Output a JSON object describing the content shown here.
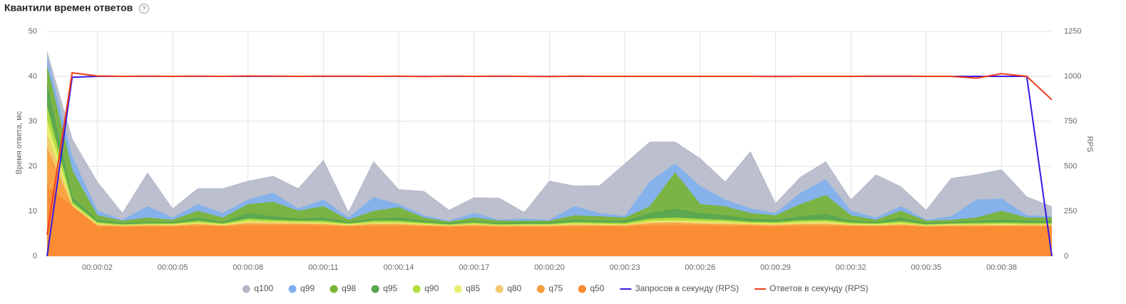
{
  "chart_data": {
    "type": "area",
    "title": "Квантили времен ответов",
    "help": "?",
    "ylabel": "Время ответа, мс",
    "y2label": "RPS",
    "x": [
      0,
      1,
      2,
      3,
      4,
      5,
      6,
      7,
      8,
      9,
      10,
      11,
      12,
      13,
      14,
      15,
      16,
      17,
      18,
      19,
      20,
      21,
      22,
      23,
      24,
      25,
      26,
      27,
      28,
      29,
      30,
      31,
      32,
      33,
      34,
      35,
      36,
      37,
      38,
      39,
      40
    ],
    "xlim": [
      0,
      40
    ],
    "xticks": [
      {
        "value": 2,
        "label": "00:00:02"
      },
      {
        "value": 5,
        "label": "00:00:05"
      },
      {
        "value": 8,
        "label": "00:00:08"
      },
      {
        "value": 11,
        "label": "00:00:11"
      },
      {
        "value": 14,
        "label": "00:00:14"
      },
      {
        "value": 17,
        "label": "00:00:17"
      },
      {
        "value": 20,
        "label": "00:00:20"
      },
      {
        "value": 23,
        "label": "00:00:23"
      },
      {
        "value": 26,
        "label": "00:00:26"
      },
      {
        "value": 29,
        "label": "00:00:29"
      },
      {
        "value": 32,
        "label": "00:00:32"
      },
      {
        "value": 35,
        "label": "00:00:35"
      },
      {
        "value": 38,
        "label": "00:00:38"
      }
    ],
    "ylim": [
      0,
      50
    ],
    "yticks": [
      0,
      10,
      20,
      30,
      40,
      50
    ],
    "y2lim": [
      0,
      1250
    ],
    "y2ticks": [
      0,
      250,
      500,
      750,
      1000,
      1250
    ],
    "grid": true,
    "legend": "bottom",
    "series": [
      {
        "name": "q100",
        "type": "area",
        "color": "#b4b8c9",
        "values": [
          45.4,
          26,
          16.5,
          9.5,
          18.5,
          10.5,
          15,
          15,
          16.7,
          17.8,
          15,
          21.3,
          9.7,
          21,
          14.8,
          14.4,
          10.2,
          13,
          12.9,
          9.7,
          16.7,
          15.6,
          15.7,
          20.5,
          25.4,
          25.4,
          21.7,
          16.5,
          23.2,
          11.7,
          17.6,
          21,
          12.5,
          18.1,
          15.4,
          10.2,
          17.3,
          18.1,
          19.2,
          13.2,
          11
        ]
      },
      {
        "name": "q99",
        "type": "area",
        "color": "#7fb0ee",
        "values": [
          44,
          22,
          10,
          8,
          11,
          8.5,
          11.5,
          9.5,
          12.5,
          14,
          10.5,
          12.5,
          8.5,
          13,
          11.5,
          9,
          7.8,
          9.5,
          8,
          8.3,
          8,
          11,
          9.5,
          8.8,
          16.5,
          20.5,
          15.5,
          12.5,
          10.5,
          9.5,
          14,
          17,
          10,
          8.5,
          11,
          8,
          8.8,
          12.5,
          12.7,
          9,
          8.8
        ]
      },
      {
        "name": "q98",
        "type": "area",
        "color": "#7ab433",
        "values": [
          42,
          19,
          9,
          7.8,
          8.5,
          8,
          10,
          8.5,
          11.5,
          12,
          10,
          11,
          8,
          10,
          10.8,
          8.5,
          7.6,
          8.5,
          7.8,
          7.8,
          7.8,
          9,
          8.8,
          8.5,
          11,
          18.5,
          11.5,
          11,
          9.5,
          9,
          11.5,
          13.5,
          9,
          8,
          10,
          7.8,
          8,
          8.5,
          10,
          8.5,
          8.5
        ]
      },
      {
        "name": "q95",
        "type": "area",
        "color": "#58a651",
        "values": [
          38,
          13,
          8,
          7.3,
          7.5,
          7.5,
          8.5,
          7.5,
          9.5,
          8.8,
          8.3,
          8.5,
          7.5,
          8.3,
          8.5,
          7.8,
          7.3,
          7.8,
          7.3,
          7.5,
          7.5,
          8,
          7.8,
          7.8,
          9.5,
          10.5,
          9.5,
          9,
          8.3,
          8,
          8.8,
          9.3,
          7.8,
          7.5,
          8.5,
          7.3,
          7.5,
          7.8,
          8,
          7.8,
          7.8
        ]
      },
      {
        "name": "q90",
        "type": "area",
        "color": "#b5df3c",
        "values": [
          33,
          12,
          7.5,
          7,
          7.2,
          7.2,
          7.8,
          7.2,
          8.3,
          8,
          7.8,
          7.8,
          7.2,
          7.8,
          7.8,
          7.4,
          7,
          7.4,
          7,
          7.1,
          7.1,
          7.5,
          7.4,
          7.3,
          8.3,
          8.5,
          8.2,
          8,
          7.6,
          7.5,
          7.9,
          8,
          7.4,
          7.2,
          7.7,
          7,
          7.2,
          7.3,
          7.4,
          7.3,
          7.3
        ]
      },
      {
        "name": "q85",
        "type": "area",
        "color": "#e9ef72",
        "values": [
          30,
          11.5,
          7.2,
          6.8,
          7,
          7,
          7.4,
          7,
          7.8,
          7.6,
          7.5,
          7.4,
          7,
          7.4,
          7.4,
          7.1,
          6.8,
          7.1,
          6.8,
          6.9,
          6.9,
          7.2,
          7.1,
          7,
          7.8,
          7.9,
          7.7,
          7.6,
          7.3,
          7.2,
          7.5,
          7.6,
          7.1,
          7,
          7.3,
          6.8,
          7,
          7,
          7.1,
          7,
          7
        ]
      },
      {
        "name": "q80",
        "type": "area",
        "color": "#f3c86b",
        "values": [
          27,
          11.2,
          7,
          6.7,
          6.9,
          6.8,
          7.2,
          6.8,
          7.5,
          7.4,
          7.3,
          7.2,
          6.8,
          7.2,
          7.2,
          6.9,
          6.7,
          7,
          6.7,
          6.8,
          6.8,
          7,
          6.9,
          6.9,
          7.5,
          7.6,
          7.4,
          7.3,
          7.1,
          7,
          7.2,
          7.3,
          6.9,
          6.8,
          7.1,
          6.7,
          6.8,
          6.9,
          6.9,
          6.9,
          6.9
        ]
      },
      {
        "name": "q75",
        "type": "area",
        "color": "#f99e3e",
        "values": [
          24,
          11,
          6.8,
          6.6,
          6.7,
          6.7,
          7,
          6.7,
          7.2,
          7.1,
          7.1,
          7,
          6.7,
          7,
          7,
          6.8,
          6.6,
          6.8,
          6.6,
          6.6,
          6.6,
          6.8,
          6.8,
          6.7,
          7.2,
          7.3,
          7.1,
          7,
          6.9,
          6.8,
          7,
          7,
          6.8,
          6.7,
          6.9,
          6.6,
          6.7,
          6.7,
          6.7,
          6.7,
          6.7
        ]
      },
      {
        "name": "q50",
        "type": "area",
        "color": "#f98b33",
        "values": [
          15.5,
          11,
          6.5,
          6.4,
          6.5,
          6.5,
          6.6,
          6.5,
          6.7,
          6.7,
          6.7,
          6.6,
          6.5,
          6.6,
          6.6,
          6.5,
          6.4,
          6.5,
          6.4,
          6.4,
          6.4,
          6.5,
          6.5,
          6.5,
          6.7,
          6.7,
          6.7,
          6.6,
          6.6,
          6.5,
          6.6,
          6.6,
          6.5,
          6.5,
          6.6,
          6.4,
          6.5,
          6.5,
          6.5,
          6.5,
          6.5
        ]
      },
      {
        "name": "Запросов в секунду (RPS)",
        "type": "line",
        "axis": "y2",
        "color": "#3a17e3",
        "values": [
          0,
          995,
          1000,
          1000,
          1000,
          1000,
          1000,
          1000,
          1000,
          1000,
          1000,
          1000,
          1000,
          1000,
          1000,
          1000,
          1000,
          1000,
          1000,
          1000,
          1000,
          1000,
          1000,
          1000,
          1000,
          1000,
          1000,
          1000,
          1000,
          1000,
          1000,
          1000,
          1000,
          1000,
          1000,
          1000,
          1000,
          1000,
          1000,
          1000,
          0
        ]
      },
      {
        "name": "Ответов в секунду (RPS)",
        "type": "line",
        "axis": "y2",
        "color": "#f03d1c",
        "values": [
          120,
          1020,
          1002,
          1000,
          1001,
          1000,
          1001,
          1000,
          1002,
          1001,
          1000,
          1001,
          1001,
          1000,
          1001,
          999,
          1001,
          1000,
          1001,
          1000,
          999,
          1001,
          1000,
          1000,
          1000,
          1000,
          1000,
          1000,
          1000,
          999,
          1000,
          1000,
          1000,
          1001,
          1001,
          1000,
          1000,
          990,
          1015,
          1000,
          870
        ]
      }
    ]
  }
}
